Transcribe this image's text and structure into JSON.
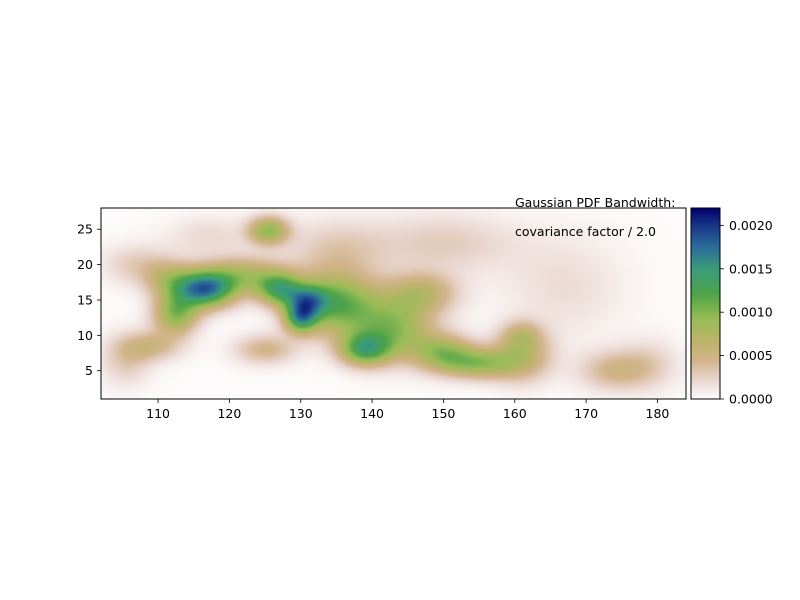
{
  "annotation": {
    "line1": "Gaussian PDF Bandwidth:",
    "line2": "covariance factor / 2.0"
  },
  "chart_data": {
    "type": "heatmap",
    "title": "",
    "xlabel": "",
    "ylabel": "",
    "xlim": [
      102,
      184
    ],
    "ylim": [
      1,
      28
    ],
    "x_ticks": [
      110,
      120,
      130,
      140,
      150,
      160,
      170,
      180
    ],
    "x_tick_labels": [
      "110",
      "120",
      "130",
      "140",
      "150",
      "160",
      "170",
      "180"
    ],
    "y_ticks": [
      5,
      10,
      15,
      20,
      25
    ],
    "y_tick_labels": [
      "5",
      "10",
      "15",
      "20",
      "25"
    ],
    "colormap": "gist_earth_r",
    "colorbar": {
      "range": [
        0.0,
        0.0022
      ],
      "ticks": [
        0.0,
        0.0005,
        0.001,
        0.0015,
        0.002
      ],
      "tick_labels": [
        "0.0000",
        "0.0005",
        "0.0010",
        "0.0015",
        "0.0020"
      ]
    },
    "colormap_stops": [
      {
        "v": 0.0,
        "color": "#fdfbfb"
      },
      {
        "v": 0.1,
        "color": "#e9d5ce"
      },
      {
        "v": 0.2,
        "color": "#d2b48c"
      },
      {
        "v": 0.3,
        "color": "#bcb36a"
      },
      {
        "v": 0.42,
        "color": "#98bc56"
      },
      {
        "v": 0.55,
        "color": "#4da348"
      },
      {
        "v": 0.68,
        "color": "#3a9c7a"
      },
      {
        "v": 0.8,
        "color": "#2a6a9a"
      },
      {
        "v": 0.9,
        "color": "#1a3a8a"
      },
      {
        "v": 1.0,
        "color": "#00006a"
      }
    ],
    "density_components": [
      {
        "x": 116.5,
        "y": 16.5,
        "sx": 3.0,
        "sy": 1.8,
        "amp": 0.00165
      },
      {
        "x": 112.5,
        "y": 13.0,
        "sx": 2.2,
        "sy": 2.0,
        "amp": 0.00095
      },
      {
        "x": 111.5,
        "y": 18.0,
        "sx": 2.5,
        "sy": 1.8,
        "amp": 0.0005
      },
      {
        "x": 109.0,
        "y": 8.5,
        "sx": 3.0,
        "sy": 1.5,
        "amp": 0.00045
      },
      {
        "x": 105.5,
        "y": 6.5,
        "sx": 2.5,
        "sy": 2.5,
        "amp": 0.0003
      },
      {
        "x": 107.0,
        "y": 20.0,
        "sx": 3.5,
        "sy": 2.0,
        "amp": 0.00028
      },
      {
        "x": 122.0,
        "y": 18.5,
        "sx": 4.0,
        "sy": 1.8,
        "amp": 0.0007
      },
      {
        "x": 125.5,
        "y": 24.8,
        "sx": 2.0,
        "sy": 1.4,
        "amp": 0.0009
      },
      {
        "x": 127.0,
        "y": 16.5,
        "sx": 2.2,
        "sy": 1.6,
        "amp": 0.0011
      },
      {
        "x": 130.0,
        "y": 12.5,
        "sx": 1.6,
        "sy": 1.5,
        "amp": 0.0012
      },
      {
        "x": 131.0,
        "y": 15.0,
        "sx": 2.0,
        "sy": 1.5,
        "amp": 0.0009
      },
      {
        "x": 135.0,
        "y": 14.5,
        "sx": 4.0,
        "sy": 3.0,
        "amp": 0.0011
      },
      {
        "x": 139.0,
        "y": 8.0,
        "sx": 2.5,
        "sy": 1.6,
        "amp": 0.0011
      },
      {
        "x": 143.0,
        "y": 11.0,
        "sx": 4.0,
        "sy": 3.0,
        "amp": 0.0009
      },
      {
        "x": 147.0,
        "y": 16.0,
        "sx": 3.5,
        "sy": 2.0,
        "amp": 0.0006
      },
      {
        "x": 150.0,
        "y": 7.5,
        "sx": 3.0,
        "sy": 1.8,
        "amp": 0.0008
      },
      {
        "x": 155.0,
        "y": 6.0,
        "sx": 3.5,
        "sy": 1.5,
        "amp": 0.0008
      },
      {
        "x": 161.0,
        "y": 7.0,
        "sx": 3.0,
        "sy": 2.5,
        "amp": 0.0006
      },
      {
        "x": 161.0,
        "y": 10.0,
        "sx": 2.0,
        "sy": 1.5,
        "amp": 0.0004
      },
      {
        "x": 125.0,
        "y": 8.0,
        "sx": 3.0,
        "sy": 1.5,
        "amp": 0.00045
      },
      {
        "x": 135.0,
        "y": 22.0,
        "sx": 5.0,
        "sy": 3.0,
        "amp": 0.0003
      },
      {
        "x": 150.0,
        "y": 23.0,
        "sx": 7.0,
        "sy": 3.0,
        "amp": 0.00028
      },
      {
        "x": 167.0,
        "y": 17.0,
        "sx": 6.0,
        "sy": 5.0,
        "amp": 0.00018
      },
      {
        "x": 174.0,
        "y": 5.0,
        "sx": 3.5,
        "sy": 2.0,
        "amp": 0.00045
      },
      {
        "x": 179.0,
        "y": 6.0,
        "sx": 3.0,
        "sy": 2.5,
        "amp": 0.00022
      },
      {
        "x": 117.0,
        "y": 24.0,
        "sx": 4.0,
        "sy": 2.0,
        "amp": 0.0002
      }
    ]
  }
}
